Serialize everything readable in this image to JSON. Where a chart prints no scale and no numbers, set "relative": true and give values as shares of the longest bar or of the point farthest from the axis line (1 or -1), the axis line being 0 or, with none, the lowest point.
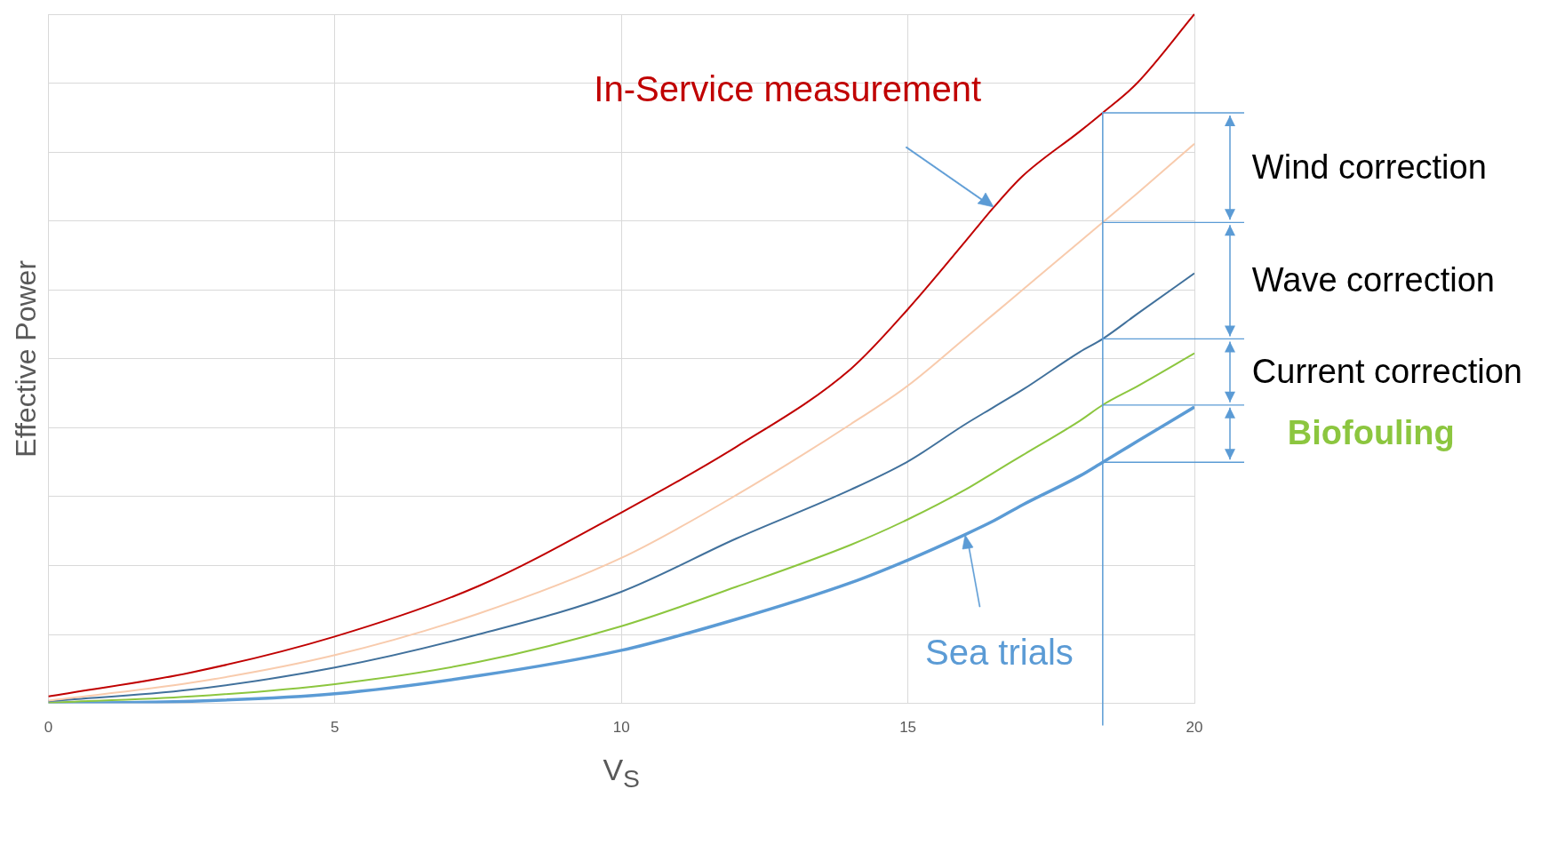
{
  "chart_data": {
    "type": "line",
    "relative": true,
    "xlabel": "V$_{S}$",
    "ylabel": "Effective Power",
    "x": [
      0,
      2.5,
      5,
      7.5,
      10,
      12,
      14,
      15,
      16,
      16.5,
      17,
      18,
      18.4,
      19,
      20
    ],
    "xlim": [
      0,
      20
    ],
    "xticks": [
      0,
      5,
      10,
      15,
      20
    ],
    "grid": true,
    "legend": false,
    "marker": "none",
    "line_style": "solid",
    "series": [
      {
        "color": "#c00000",
        "values": [
          0.01,
          0.045,
          0.097,
          0.17,
          0.277,
          0.372,
          0.485,
          0.572,
          0.67,
          0.72,
          0.765,
          0.83,
          0.857,
          0.9,
          1.0
        ]
      },
      {
        "color": "#f8cbad",
        "values": [
          0.004,
          0.03,
          0.07,
          0.13,
          0.211,
          0.302,
          0.405,
          0.461,
          0.53,
          0.565,
          0.6,
          0.67,
          0.698,
          0.74,
          0.812
        ]
      },
      {
        "color": "#41719c",
        "values": [
          0.003,
          0.02,
          0.052,
          0.1,
          0.162,
          0.239,
          0.31,
          0.351,
          0.405,
          0.43,
          0.455,
          0.51,
          0.529,
          0.565,
          0.624
        ]
      },
      {
        "color": "#8cc63f",
        "values": [
          0.001,
          0.01,
          0.028,
          0.06,
          0.112,
          0.169,
          0.23,
          0.267,
          0.31,
          0.335,
          0.36,
          0.41,
          0.433,
          0.46,
          0.508
        ]
      },
      {
        "color": "#5b9bd5",
        "values": [
          0,
          0.003,
          0.014,
          0.04,
          0.077,
          0.122,
          0.175,
          0.208,
          0.245,
          0.265,
          0.288,
          0.33,
          0.35,
          0.38,
          0.43
        ]
      }
    ],
    "ref_lines": [
      {
        "axis": "x",
        "value": 18.4,
        "color": "#5b9bd5"
      }
    ],
    "annotations": [
      "Wind correction",
      "Wave correction",
      "Current correction",
      "Biofouling",
      {
        "text": "In-Service measurement",
        "x": 16.5,
        "y": 0.72
      },
      {
        "text": "Sea trials",
        "x": 16,
        "y": 0.245
      }
    ]
  }
}
